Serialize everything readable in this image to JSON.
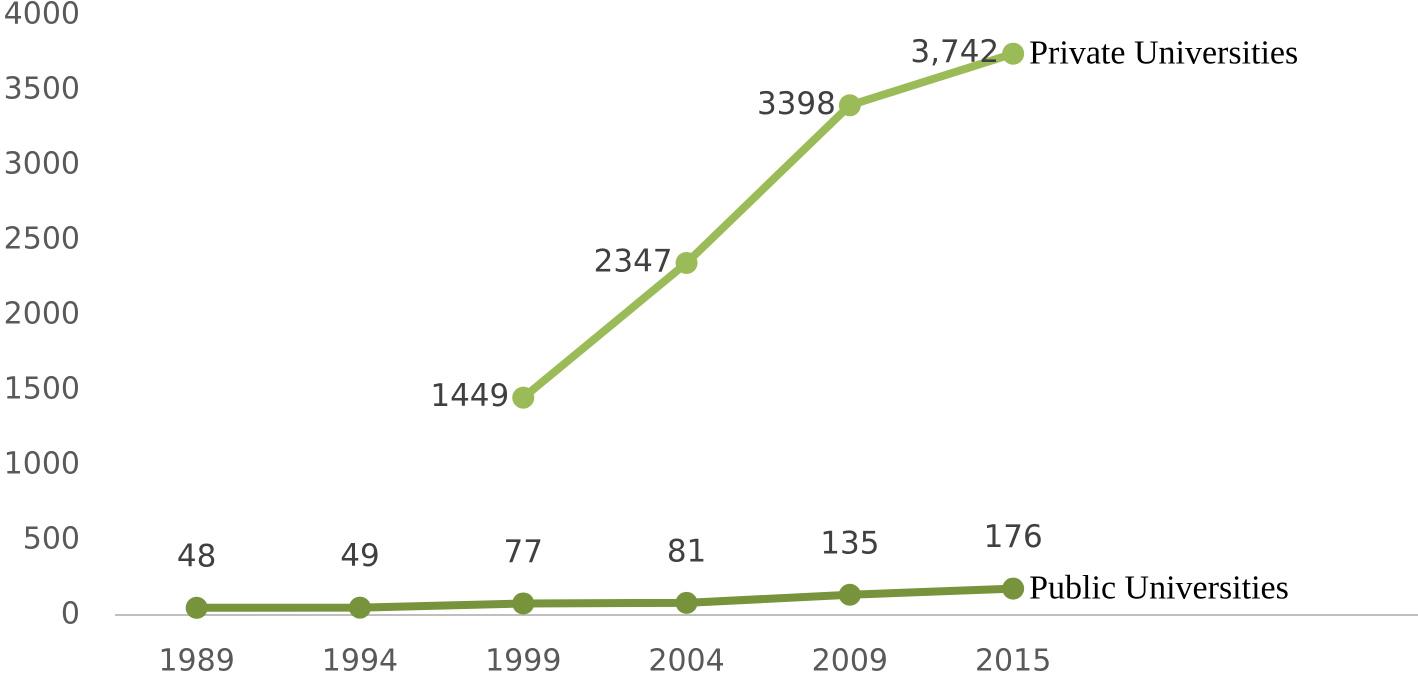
{
  "chart_data": {
    "type": "line",
    "categories": [
      "1989",
      "1994",
      "1999",
      "2004",
      "2009",
      "2015"
    ],
    "series": [
      {
        "name": "Private Universities",
        "color": "#9bbb59",
        "values": [
          null,
          null,
          1449,
          2347,
          3398,
          3742
        ],
        "value_labels": [
          null,
          null,
          "1449",
          "2347",
          "3398",
          "3,742"
        ]
      },
      {
        "name": "Public Universities",
        "color": "#77933c",
        "values": [
          48,
          49,
          77,
          81,
          135,
          176
        ]
      }
    ],
    "ylim": [
      0,
      4000
    ],
    "yticks": [
      0,
      500,
      1000,
      1500,
      2000,
      2500,
      3000,
      3500,
      4000
    ],
    "grid": false
  }
}
